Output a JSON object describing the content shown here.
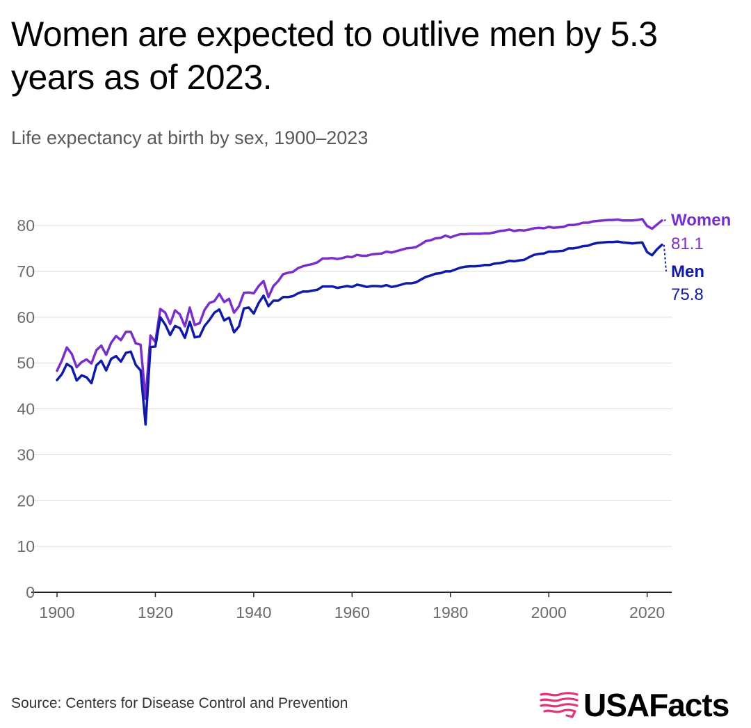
{
  "header": {
    "title": "Women are expected to outlive men by 5.3 years as of 2023.",
    "subtitle": "Life expectancy at birth by sex, 1900–2023"
  },
  "footer": {
    "source": "Source: Centers for Disease Control and Prevention",
    "brand": "USAFacts",
    "logo_icon": "usa-map-flag-icon"
  },
  "colors": {
    "women": "#7b2fc9",
    "men": "#0f1aa6",
    "grid": "#dcdcdc",
    "axis": "#222222",
    "brand_accent": "#e0337a"
  },
  "chart_data": {
    "type": "line",
    "title": "Women are expected to outlive men by 5.3 years as of 2023.",
    "subtitle": "Life expectancy at birth by sex, 1900–2023",
    "xlabel": "",
    "ylabel": "",
    "xlim": [
      1900,
      2025
    ],
    "ylim": [
      0,
      85
    ],
    "x_ticks": [
      1900,
      1920,
      1940,
      1960,
      1980,
      2000,
      2020
    ],
    "y_ticks": [
      0,
      10,
      20,
      30,
      40,
      50,
      60,
      70,
      80
    ],
    "grid": "horizontal",
    "legend": "end-of-line labels, right",
    "series": [
      {
        "name": "Women",
        "end_label": "81.1",
        "points": [
          [
            1900,
            48.3
          ],
          [
            1901,
            50.6
          ],
          [
            1902,
            53.4
          ],
          [
            1903,
            52.0
          ],
          [
            1904,
            49.1
          ],
          [
            1905,
            50.2
          ],
          [
            1906,
            50.8
          ],
          [
            1907,
            49.9
          ],
          [
            1908,
            52.8
          ],
          [
            1909,
            53.8
          ],
          [
            1910,
            51.8
          ],
          [
            1911,
            54.4
          ],
          [
            1912,
            55.9
          ],
          [
            1913,
            55.0
          ],
          [
            1914,
            56.8
          ],
          [
            1915,
            56.8
          ],
          [
            1916,
            54.3
          ],
          [
            1917,
            54.0
          ],
          [
            1918,
            42.2
          ],
          [
            1919,
            56.0
          ],
          [
            1920,
            54.6
          ],
          [
            1921,
            61.8
          ],
          [
            1922,
            61.0
          ],
          [
            1923,
            58.5
          ],
          [
            1924,
            61.5
          ],
          [
            1925,
            60.6
          ],
          [
            1926,
            58.0
          ],
          [
            1927,
            62.1
          ],
          [
            1928,
            58.3
          ],
          [
            1929,
            58.7
          ],
          [
            1930,
            61.6
          ],
          [
            1931,
            63.1
          ],
          [
            1932,
            63.5
          ],
          [
            1933,
            65.1
          ],
          [
            1934,
            63.3
          ],
          [
            1935,
            64.0
          ],
          [
            1936,
            61.0
          ],
          [
            1937,
            62.4
          ],
          [
            1938,
            65.3
          ],
          [
            1939,
            65.4
          ],
          [
            1940,
            65.2
          ],
          [
            1941,
            66.8
          ],
          [
            1942,
            67.9
          ],
          [
            1943,
            64.4
          ],
          [
            1944,
            66.8
          ],
          [
            1945,
            67.9
          ],
          [
            1946,
            69.4
          ],
          [
            1947,
            69.7
          ],
          [
            1948,
            69.9
          ],
          [
            1949,
            70.7
          ],
          [
            1950,
            71.1
          ],
          [
            1951,
            71.4
          ],
          [
            1952,
            71.6
          ],
          [
            1953,
            72.0
          ],
          [
            1954,
            72.8
          ],
          [
            1955,
            72.8
          ],
          [
            1956,
            72.9
          ],
          [
            1957,
            72.7
          ],
          [
            1958,
            72.9
          ],
          [
            1959,
            73.2
          ],
          [
            1960,
            73.1
          ],
          [
            1961,
            73.6
          ],
          [
            1962,
            73.4
          ],
          [
            1963,
            73.4
          ],
          [
            1964,
            73.7
          ],
          [
            1965,
            73.8
          ],
          [
            1966,
            73.9
          ],
          [
            1967,
            74.3
          ],
          [
            1968,
            74.1
          ],
          [
            1969,
            74.4
          ],
          [
            1970,
            74.7
          ],
          [
            1971,
            75.0
          ],
          [
            1972,
            75.1
          ],
          [
            1973,
            75.3
          ],
          [
            1974,
            75.9
          ],
          [
            1975,
            76.6
          ],
          [
            1976,
            76.8
          ],
          [
            1977,
            77.2
          ],
          [
            1978,
            77.3
          ],
          [
            1979,
            77.8
          ],
          [
            1980,
            77.4
          ],
          [
            1981,
            77.8
          ],
          [
            1982,
            78.1
          ],
          [
            1983,
            78.1
          ],
          [
            1984,
            78.2
          ],
          [
            1985,
            78.2
          ],
          [
            1986,
            78.2
          ],
          [
            1987,
            78.3
          ],
          [
            1988,
            78.3
          ],
          [
            1989,
            78.5
          ],
          [
            1990,
            78.8
          ],
          [
            1991,
            78.9
          ],
          [
            1992,
            79.1
          ],
          [
            1993,
            78.8
          ],
          [
            1994,
            79.0
          ],
          [
            1995,
            78.9
          ],
          [
            1996,
            79.1
          ],
          [
            1997,
            79.4
          ],
          [
            1998,
            79.5
          ],
          [
            1999,
            79.4
          ],
          [
            2000,
            79.7
          ],
          [
            2001,
            79.5
          ],
          [
            2002,
            79.6
          ],
          [
            2003,
            79.7
          ],
          [
            2004,
            80.1
          ],
          [
            2005,
            80.1
          ],
          [
            2006,
            80.3
          ],
          [
            2007,
            80.6
          ],
          [
            2008,
            80.6
          ],
          [
            2009,
            80.9
          ],
          [
            2010,
            81.0
          ],
          [
            2011,
            81.1
          ],
          [
            2012,
            81.2
          ],
          [
            2013,
            81.2
          ],
          [
            2014,
            81.3
          ],
          [
            2015,
            81.1
          ],
          [
            2016,
            81.1
          ],
          [
            2017,
            81.1
          ],
          [
            2018,
            81.2
          ],
          [
            2019,
            81.4
          ],
          [
            2020,
            79.9
          ],
          [
            2021,
            79.3
          ],
          [
            2022,
            80.2
          ],
          [
            2023,
            81.1
          ]
        ]
      },
      {
        "name": "Men",
        "end_label": "75.8",
        "points": [
          [
            1900,
            46.3
          ],
          [
            1901,
            47.6
          ],
          [
            1902,
            49.8
          ],
          [
            1903,
            49.1
          ],
          [
            1904,
            46.2
          ],
          [
            1905,
            47.3
          ],
          [
            1906,
            46.9
          ],
          [
            1907,
            45.6
          ],
          [
            1908,
            49.5
          ],
          [
            1909,
            50.5
          ],
          [
            1910,
            48.4
          ],
          [
            1911,
            50.9
          ],
          [
            1912,
            51.5
          ],
          [
            1913,
            50.3
          ],
          [
            1914,
            52.2
          ],
          [
            1915,
            52.5
          ],
          [
            1916,
            49.6
          ],
          [
            1917,
            48.4
          ],
          [
            1918,
            36.6
          ],
          [
            1919,
            53.5
          ],
          [
            1920,
            53.6
          ],
          [
            1921,
            60.0
          ],
          [
            1922,
            58.4
          ],
          [
            1923,
            56.1
          ],
          [
            1924,
            58.1
          ],
          [
            1925,
            57.6
          ],
          [
            1926,
            55.5
          ],
          [
            1927,
            59.0
          ],
          [
            1928,
            55.6
          ],
          [
            1929,
            55.8
          ],
          [
            1930,
            58.1
          ],
          [
            1931,
            59.4
          ],
          [
            1932,
            61.0
          ],
          [
            1933,
            61.7
          ],
          [
            1934,
            59.3
          ],
          [
            1935,
            59.9
          ],
          [
            1936,
            56.7
          ],
          [
            1937,
            58.0
          ],
          [
            1938,
            61.9
          ],
          [
            1939,
            62.1
          ],
          [
            1940,
            60.8
          ],
          [
            1941,
            63.1
          ],
          [
            1942,
            64.7
          ],
          [
            1943,
            62.4
          ],
          [
            1944,
            63.6
          ],
          [
            1945,
            63.6
          ],
          [
            1946,
            64.4
          ],
          [
            1947,
            64.4
          ],
          [
            1948,
            64.6
          ],
          [
            1949,
            65.2
          ],
          [
            1950,
            65.6
          ],
          [
            1951,
            65.6
          ],
          [
            1952,
            65.8
          ],
          [
            1953,
            66.0
          ],
          [
            1954,
            66.7
          ],
          [
            1955,
            66.7
          ],
          [
            1956,
            66.7
          ],
          [
            1957,
            66.4
          ],
          [
            1958,
            66.6
          ],
          [
            1959,
            66.8
          ],
          [
            1960,
            66.6
          ],
          [
            1961,
            67.1
          ],
          [
            1962,
            66.9
          ],
          [
            1963,
            66.6
          ],
          [
            1964,
            66.8
          ],
          [
            1965,
            66.8
          ],
          [
            1966,
            66.7
          ],
          [
            1967,
            67.0
          ],
          [
            1968,
            66.6
          ],
          [
            1969,
            66.8
          ],
          [
            1970,
            67.1
          ],
          [
            1971,
            67.4
          ],
          [
            1972,
            67.4
          ],
          [
            1973,
            67.6
          ],
          [
            1974,
            68.2
          ],
          [
            1975,
            68.8
          ],
          [
            1976,
            69.1
          ],
          [
            1977,
            69.5
          ],
          [
            1978,
            69.6
          ],
          [
            1979,
            70.0
          ],
          [
            1980,
            70.0
          ],
          [
            1981,
            70.4
          ],
          [
            1982,
            70.8
          ],
          [
            1983,
            71.0
          ],
          [
            1984,
            71.1
          ],
          [
            1985,
            71.1
          ],
          [
            1986,
            71.2
          ],
          [
            1987,
            71.4
          ],
          [
            1988,
            71.4
          ],
          [
            1989,
            71.7
          ],
          [
            1990,
            71.8
          ],
          [
            1991,
            72.0
          ],
          [
            1992,
            72.3
          ],
          [
            1993,
            72.2
          ],
          [
            1994,
            72.4
          ],
          [
            1995,
            72.5
          ],
          [
            1996,
            73.1
          ],
          [
            1997,
            73.6
          ],
          [
            1998,
            73.8
          ],
          [
            1999,
            73.9
          ],
          [
            2000,
            74.3
          ],
          [
            2001,
            74.3
          ],
          [
            2002,
            74.4
          ],
          [
            2003,
            74.5
          ],
          [
            2004,
            75.0
          ],
          [
            2005,
            75.0
          ],
          [
            2006,
            75.2
          ],
          [
            2007,
            75.5
          ],
          [
            2008,
            75.6
          ],
          [
            2009,
            76.0
          ],
          [
            2010,
            76.2
          ],
          [
            2011,
            76.3
          ],
          [
            2012,
            76.4
          ],
          [
            2013,
            76.4
          ],
          [
            2014,
            76.5
          ],
          [
            2015,
            76.3
          ],
          [
            2016,
            76.2
          ],
          [
            2017,
            76.1
          ],
          [
            2018,
            76.2
          ],
          [
            2019,
            76.3
          ],
          [
            2020,
            74.2
          ],
          [
            2021,
            73.5
          ],
          [
            2022,
            74.8
          ],
          [
            2023,
            75.8
          ]
        ]
      }
    ]
  }
}
